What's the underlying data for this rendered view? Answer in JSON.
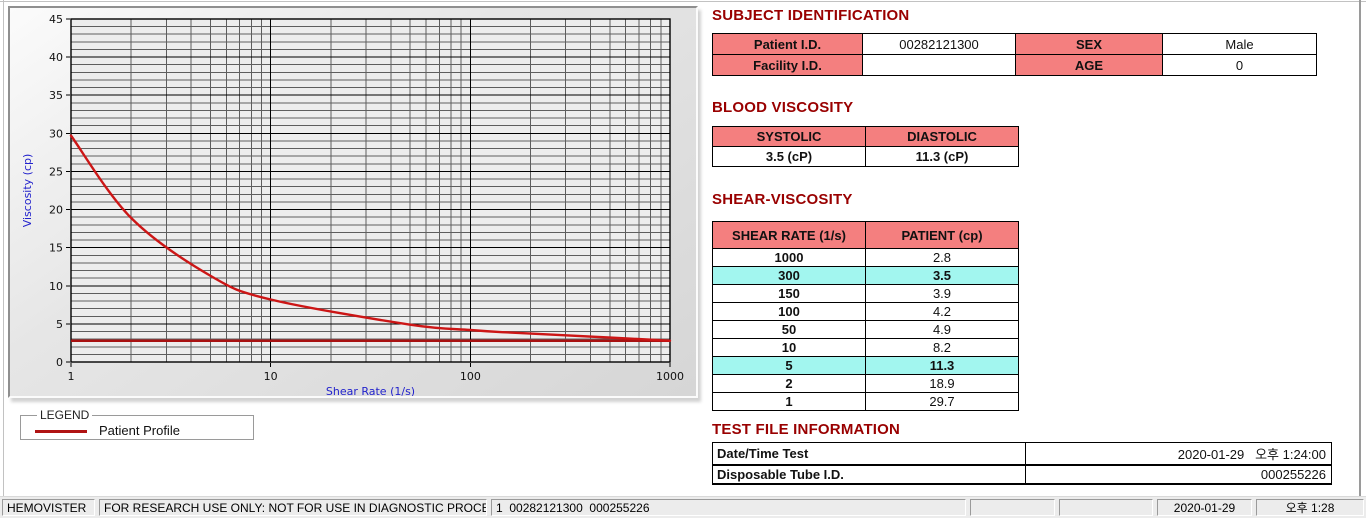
{
  "app_name": "HEMOVISTER",
  "colors": {
    "title_maroon": "#990000",
    "header_pink": "#f47f7f",
    "highlight_cyan": "#a2f6ef",
    "curve_red": "#cc1616",
    "reference_red": "#a81111",
    "axis_blue": "#2222cc"
  },
  "chart_data": {
    "type": "line",
    "x_scale": "log",
    "xlabel": "Shear Rate (1/s)",
    "ylabel": "Viscosity (cp)",
    "xlim": [
      1,
      1000
    ],
    "ylim": [
      0,
      45
    ],
    "y_tick_step": 5,
    "x_ticks": [
      1,
      10,
      100,
      1000
    ],
    "grid": "on (unit minor horizontal, log minor vertical)",
    "legend_position": "below-chart",
    "x": [
      1,
      2,
      5,
      10,
      50,
      100,
      150,
      300,
      1000
    ],
    "series": [
      {
        "name": "Patient Profile",
        "color": "#cc1616",
        "values": [
          29.7,
          18.9,
          11.3,
          8.2,
          4.9,
          4.2,
          3.9,
          3.5,
          2.8
        ]
      }
    ],
    "reference_line": {
      "y": 2.8,
      "color": "#a81111"
    },
    "axis_label_color": "#2222cc"
  },
  "legend": {
    "title": "LEGEND",
    "items": [
      {
        "label": "Patient Profile",
        "color": "#b01313"
      }
    ]
  },
  "subject_identification": {
    "title": "SUBJECT IDENTIFICATION",
    "fields": [
      {
        "label": "Patient I.D.",
        "value": "00282121300"
      },
      {
        "label": "SEX",
        "value": "Male"
      },
      {
        "label": "Facility I.D.",
        "value": ""
      },
      {
        "label": "AGE",
        "value": "0"
      }
    ]
  },
  "blood_viscosity": {
    "title": "BLOOD VISCOSITY",
    "columns": [
      {
        "header": "SYSTOLIC",
        "value": "3.5 (cP)"
      },
      {
        "header": "DIASTOLIC",
        "value": "11.3 (cP)"
      }
    ]
  },
  "shear_viscosity": {
    "title": "SHEAR-VISCOSITY",
    "headers": [
      "SHEAR RATE (1/s)",
      "PATIENT (cp)"
    ],
    "rows": [
      {
        "shear_rate": "1000",
        "patient": "2.8",
        "highlight": false
      },
      {
        "shear_rate": "300",
        "patient": "3.5",
        "highlight": true
      },
      {
        "shear_rate": "150",
        "patient": "3.9",
        "highlight": false
      },
      {
        "shear_rate": "100",
        "patient": "4.2",
        "highlight": false
      },
      {
        "shear_rate": "50",
        "patient": "4.9",
        "highlight": false
      },
      {
        "shear_rate": "10",
        "patient": "8.2",
        "highlight": false
      },
      {
        "shear_rate": "5",
        "patient": "11.3",
        "highlight": true
      },
      {
        "shear_rate": "2",
        "patient": "18.9",
        "highlight": false
      },
      {
        "shear_rate": "1",
        "patient": "29.7",
        "highlight": false
      }
    ]
  },
  "test_file_information": {
    "title": "TEST FILE INFORMATION",
    "rows": [
      {
        "label": "Date/Time Test",
        "value": "2020-01-29   오후 1:24:00"
      },
      {
        "label": "Disposable Tube I.D.",
        "value": "000255226"
      }
    ]
  },
  "statusbar": {
    "segments": [
      "HEMOVISTER",
      "FOR RESEARCH USE ONLY: NOT FOR USE IN DIAGNOSTIC PROCEDURES",
      "1  00282121300  000255226",
      "",
      "",
      "2020-01-29",
      "오후 1:28"
    ]
  }
}
